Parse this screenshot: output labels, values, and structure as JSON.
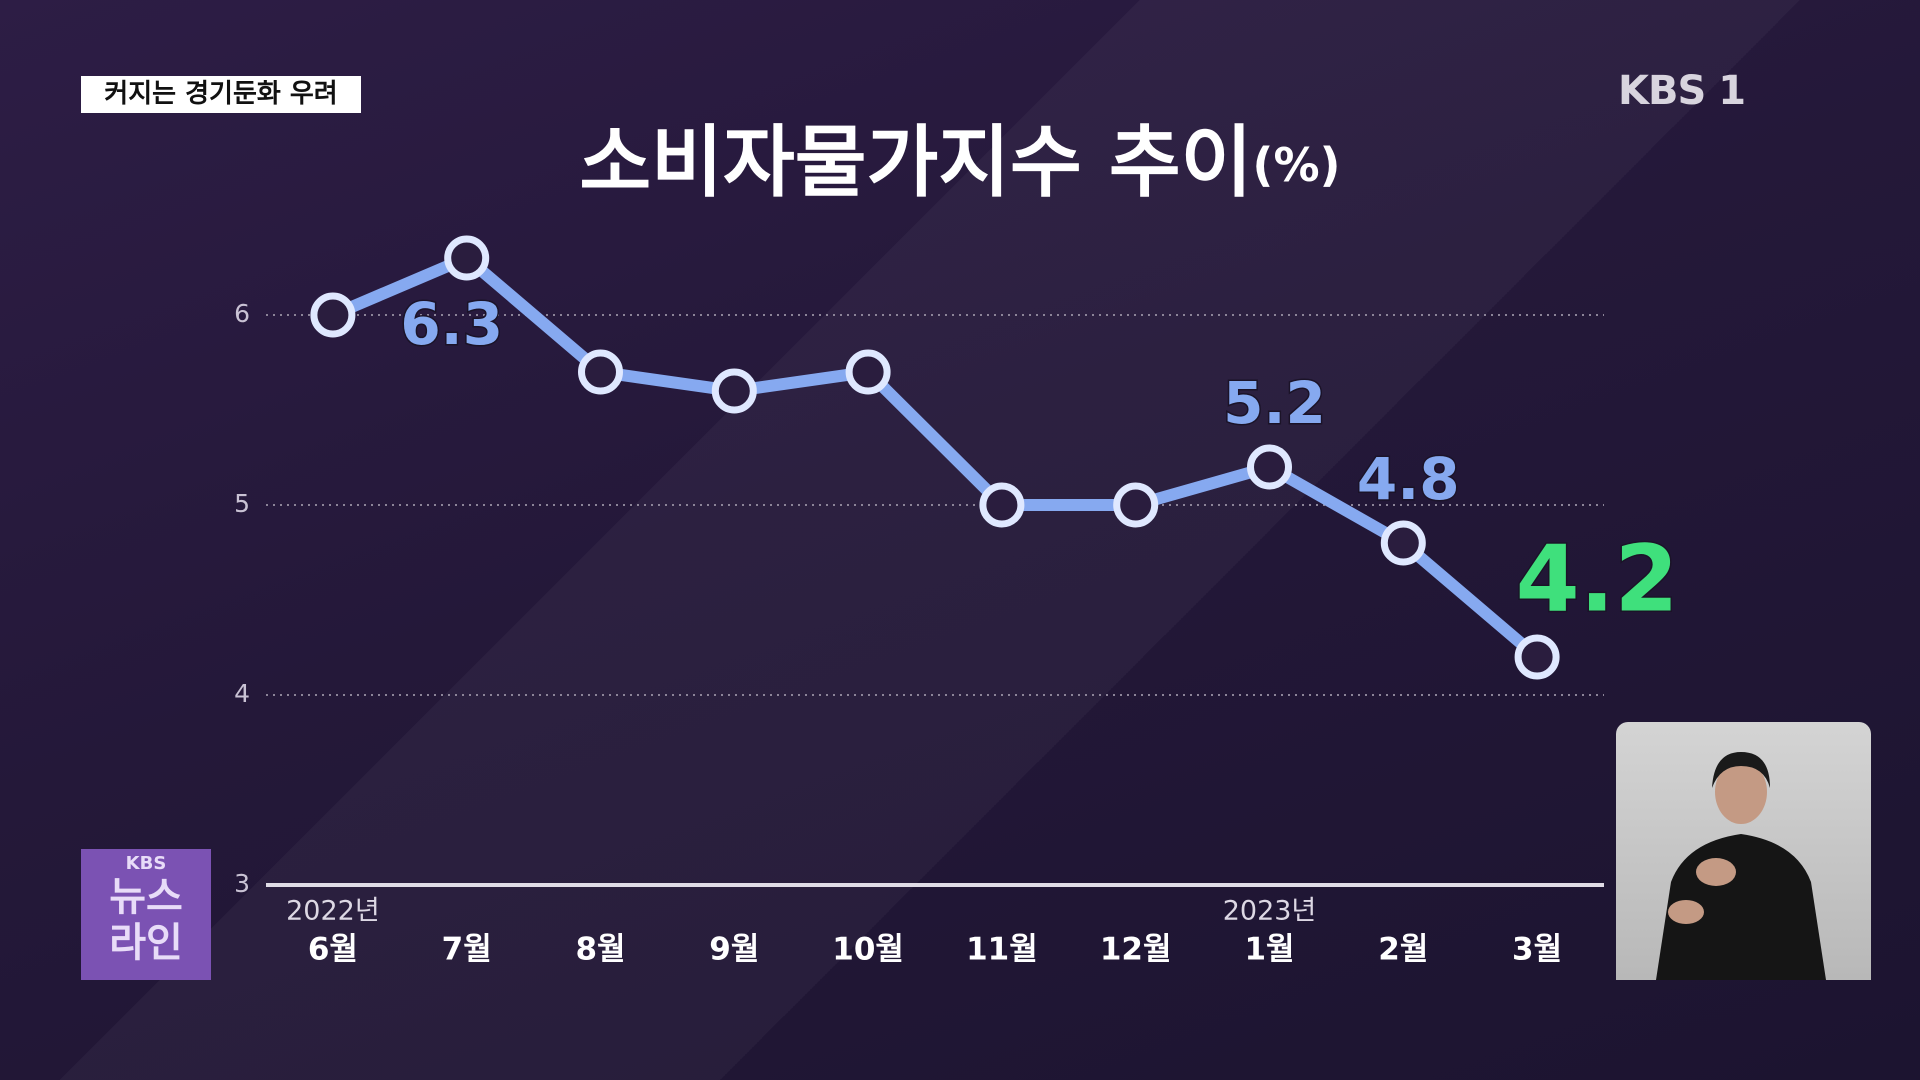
{
  "banner": "커지는 경기둔화 우려",
  "channel_logo": "KBS 1",
  "news_logo": {
    "brand": "KBS",
    "lines": [
      "뉴스",
      "라인"
    ]
  },
  "chart_data": {
    "type": "line",
    "title": "소비자물가지수 추이",
    "title_unit": "(%)",
    "categories": [
      "6월",
      "7월",
      "8월",
      "9월",
      "10월",
      "11월",
      "12월",
      "1월",
      "2월",
      "3월"
    ],
    "year_labels": [
      "2022년",
      null,
      null,
      null,
      null,
      null,
      null,
      "2023년",
      null,
      null
    ],
    "values": [
      6.0,
      6.3,
      5.7,
      5.6,
      5.7,
      5.0,
      5.0,
      5.2,
      4.8,
      4.2
    ],
    "value_labels": [
      null,
      "6.3",
      null,
      null,
      null,
      null,
      null,
      "5.2",
      "4.8",
      "4.2"
    ],
    "color": "#86a9f0",
    "highlight_color": "#3fe07c",
    "ylim": [
      3,
      6.5
    ],
    "yticks": [
      3,
      4,
      5,
      6
    ],
    "grid": true
  }
}
